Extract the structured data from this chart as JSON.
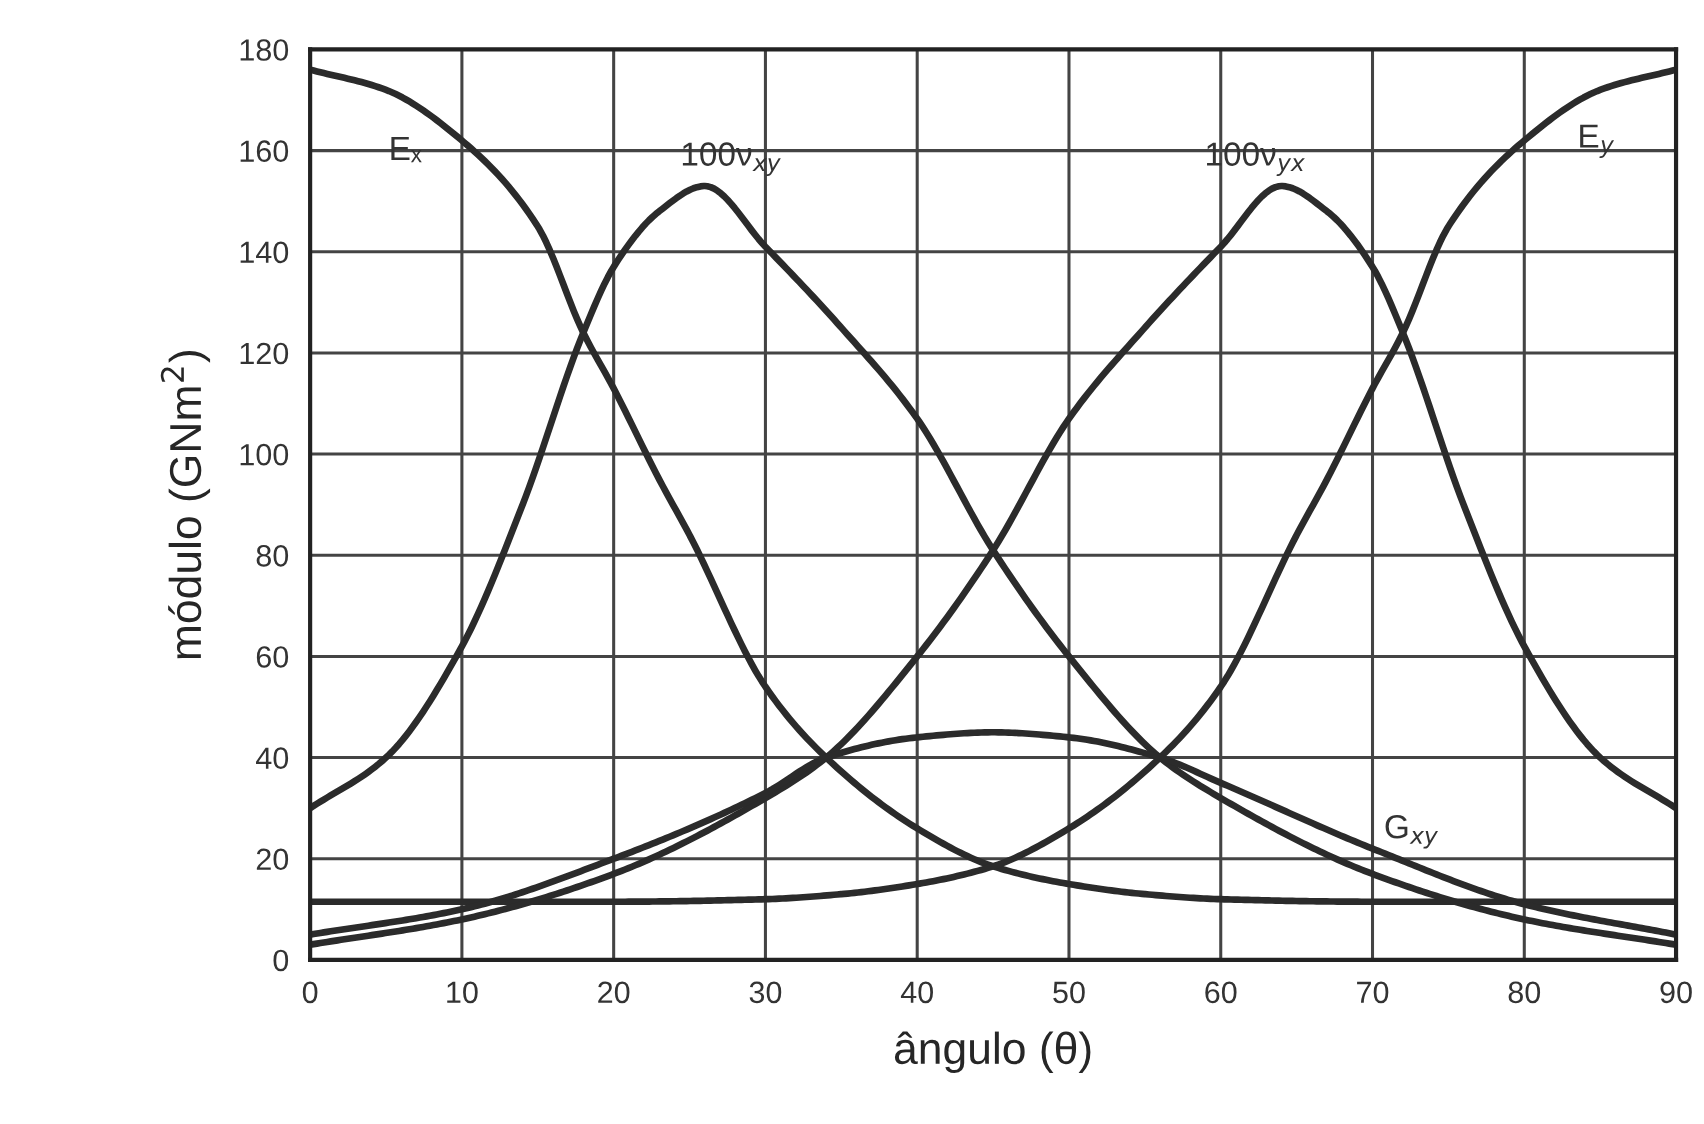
{
  "chart_data": {
    "type": "line",
    "xlabel": "ângulo (θ)",
    "ylabel": "módulo (GNm$^{2}$)",
    "xlim": [
      0,
      90
    ],
    "ylim": [
      0,
      180
    ],
    "xticks": [
      0,
      10,
      20,
      30,
      40,
      50,
      60,
      70,
      80,
      90
    ],
    "yticks": [
      0,
      20,
      40,
      60,
      80,
      100,
      120,
      140,
      160,
      180
    ],
    "grid": true,
    "marker": "none",
    "line_style": "solid",
    "series": [
      {
        "name": "Eₓ",
        "color": "#2b2b2b",
        "x": [
          0,
          5,
          10,
          15,
          18,
          20,
          23,
          25,
          30,
          34,
          40,
          45,
          50,
          55,
          60,
          70,
          80,
          90
        ],
        "values": [
          176,
          172,
          162,
          145,
          124,
          113,
          95,
          84,
          54,
          40,
          26,
          18.5,
          15,
          13,
          12,
          11.5,
          11.5,
          11.5
        ]
      },
      {
        "name": "E$_{y}$",
        "color": "#2b2b2b",
        "x": [
          0,
          10,
          20,
          30,
          35,
          40,
          45,
          50,
          56,
          60,
          65,
          67,
          70,
          72,
          75,
          80,
          85,
          90
        ],
        "values": [
          11.5,
          11.5,
          11.5,
          12,
          13,
          15,
          18.5,
          26,
          40,
          54,
          84,
          95,
          113,
          124,
          145,
          162,
          172,
          176
        ]
      },
      {
        "name": "100ν$_{xy}$",
        "color": "#2b2b2b",
        "x": [
          0,
          5,
          10,
          14,
          18,
          20,
          23,
          26,
          30,
          35,
          40,
          45,
          50,
          56,
          60,
          70,
          80,
          90
        ],
        "values": [
          30,
          40,
          62,
          90,
          124,
          137,
          148,
          153,
          141,
          125,
          107,
          81,
          60,
          40,
          32,
          17,
          8,
          3
        ]
      },
      {
        "name": "100ν$_{yx}$",
        "color": "#2b2b2b",
        "x": [
          0,
          10,
          20,
          30,
          34,
          40,
          45,
          50,
          55,
          60,
          64,
          67,
          70,
          72,
          76,
          80,
          85,
          90
        ],
        "values": [
          3,
          8,
          17,
          32,
          40,
          60,
          81,
          107,
          125,
          141,
          153,
          148,
          137,
          124,
          90,
          62,
          40,
          30
        ]
      },
      {
        "name": "G$_{xy}$",
        "color": "#2b2b2b",
        "x": [
          0,
          10,
          20,
          30,
          34,
          40,
          45,
          50,
          56,
          60,
          70,
          80,
          90
        ],
        "values": [
          5,
          10,
          20,
          33,
          40,
          44,
          45,
          44,
          40,
          35,
          22,
          11,
          5
        ]
      }
    ]
  }
}
